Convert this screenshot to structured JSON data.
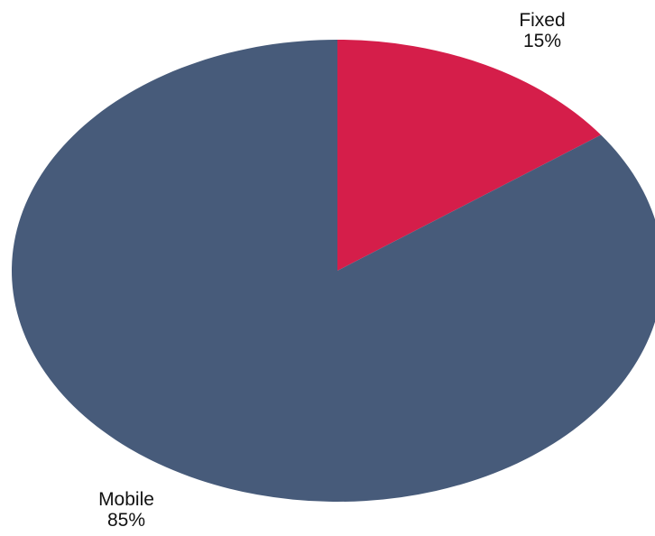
{
  "chart_data": {
    "type": "pie",
    "title": "",
    "slices": [
      {
        "label": "Fixed",
        "value": 15,
        "value_label": "15%",
        "color": "#d51e4a"
      },
      {
        "label": "Mobile",
        "value": 85,
        "value_label": "85%",
        "color": "#475b7a"
      }
    ],
    "start_angle": "12 o'clock",
    "direction": "clockwise",
    "legend": "none",
    "labels": "outside, category name above percentage"
  }
}
